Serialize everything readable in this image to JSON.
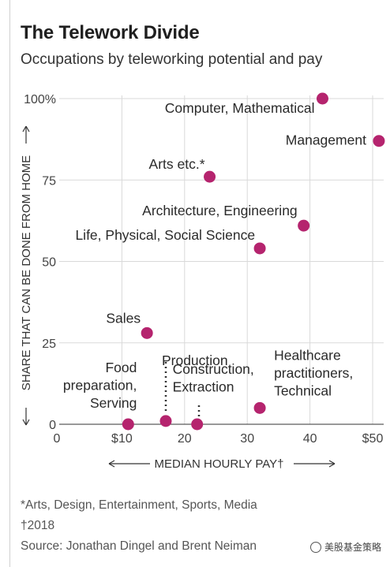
{
  "title": "The Telework Divide",
  "subtitle": "Occupations by teleworking potential and pay",
  "chart_data": {
    "type": "scatter",
    "xlabel": "MEDIAN HOURLY PAY†",
    "ylabel": "SHARE THAT CAN BE DONE FROM HOME",
    "xlim": [
      0,
      50
    ],
    "ylim": [
      0,
      100
    ],
    "xticks": [
      "0",
      "$10",
      "20",
      "30",
      "40",
      "$50"
    ],
    "xtick_values": [
      0,
      10,
      20,
      30,
      40,
      50
    ],
    "yticks": [
      "0",
      "25",
      "50",
      "75",
      "100%"
    ],
    "ytick_values": [
      0,
      25,
      50,
      75,
      100
    ],
    "grid": true,
    "point_color": "#b5246e",
    "points": [
      {
        "label": "Computer, Mathematical",
        "x": 42,
        "y": 100
      },
      {
        "label": "Management",
        "x": 51,
        "y": 87
      },
      {
        "label": "Arts etc.*",
        "x": 24,
        "y": 76
      },
      {
        "label": "Architecture, Engineering",
        "x": 39,
        "y": 61
      },
      {
        "label": "Life, Physical, Social Science",
        "x": 32,
        "y": 54
      },
      {
        "label": "Sales",
        "x": 14,
        "y": 28
      },
      {
        "label": "Production",
        "x": 17,
        "y": 1
      },
      {
        "label": "Food preparation, Serving",
        "x": 11,
        "y": 0
      },
      {
        "label": "Construction, Extraction",
        "x": 22,
        "y": 0
      },
      {
        "label": "Healthcare practitioners, Technical",
        "x": 32,
        "y": 5
      }
    ]
  },
  "notes": {
    "arts_footnote": "*Arts, Design, Entertainment, Sports, Media",
    "year_footnote": "†2018",
    "source": "Source: Jonathan Dingel and Brent Neiman"
  },
  "watermark": "美股基金策略"
}
